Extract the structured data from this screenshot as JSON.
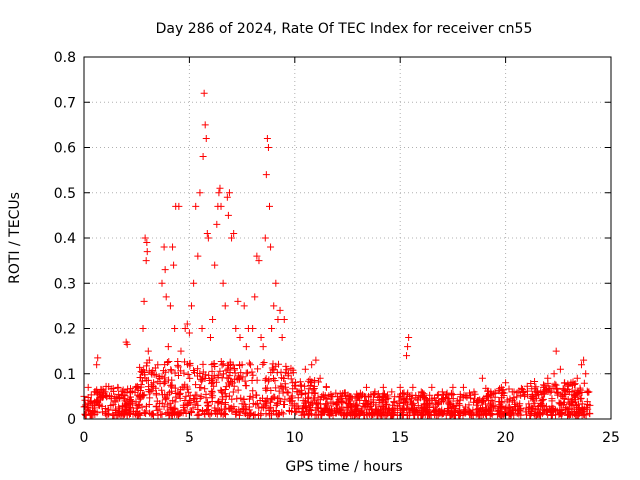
{
  "chart_data": {
    "type": "scatter",
    "title": "Day 286 of 2024, Rate Of TEC Index for receiver cn55",
    "xlabel": "GPS time / hours",
    "ylabel": "ROTI / TECUs",
    "xlim": [
      0,
      25
    ],
    "ylim": [
      0,
      0.8
    ],
    "xticks": [
      "0",
      "5",
      "10",
      "15",
      "20",
      "25"
    ],
    "yticks": [
      "0",
      "0.1",
      "0.2",
      "0.3",
      "0.4",
      "0.5",
      "0.6",
      "0.7",
      "0.8"
    ],
    "grid": true,
    "marker": "+",
    "color": "#ff0000",
    "series": [
      {
        "name": "ROTI",
        "points": [
          [
            0.0,
            0.05
          ],
          [
            0.2,
            0.07
          ],
          [
            0.3,
            0.04
          ],
          [
            0.5,
            0.06
          ],
          [
            0.6,
            0.12
          ],
          [
            0.65,
            0.135
          ],
          [
            0.8,
            0.05
          ],
          [
            1.0,
            0.06
          ],
          [
            1.3,
            0.05
          ],
          [
            1.6,
            0.07
          ],
          [
            2.0,
            0.17
          ],
          [
            2.05,
            0.165
          ],
          [
            2.2,
            0.06
          ],
          [
            2.5,
            0.07
          ],
          [
            2.8,
            0.2
          ],
          [
            2.85,
            0.26
          ],
          [
            2.9,
            0.4
          ],
          [
            2.95,
            0.35
          ],
          [
            2.98,
            0.39
          ],
          [
            3.0,
            0.37
          ],
          [
            3.05,
            0.15
          ],
          [
            3.1,
            0.13
          ],
          [
            3.3,
            0.08
          ],
          [
            3.5,
            0.12
          ],
          [
            3.7,
            0.3
          ],
          [
            3.8,
            0.38
          ],
          [
            3.85,
            0.33
          ],
          [
            3.9,
            0.27
          ],
          [
            4.0,
            0.16
          ],
          [
            4.1,
            0.25
          ],
          [
            4.2,
            0.38
          ],
          [
            4.25,
            0.34
          ],
          [
            4.3,
            0.2
          ],
          [
            4.35,
            0.47
          ],
          [
            4.5,
            0.47
          ],
          [
            4.6,
            0.15
          ],
          [
            4.8,
            0.2
          ],
          [
            4.9,
            0.21
          ],
          [
            5.0,
            0.19
          ],
          [
            5.1,
            0.25
          ],
          [
            5.2,
            0.3
          ],
          [
            5.3,
            0.47
          ],
          [
            5.4,
            0.36
          ],
          [
            5.5,
            0.5
          ],
          [
            5.6,
            0.2
          ],
          [
            5.65,
            0.58
          ],
          [
            5.7,
            0.72
          ],
          [
            5.75,
            0.65
          ],
          [
            5.8,
            0.62
          ],
          [
            5.85,
            0.41
          ],
          [
            5.9,
            0.4
          ],
          [
            6.0,
            0.18
          ],
          [
            6.1,
            0.22
          ],
          [
            6.2,
            0.34
          ],
          [
            6.3,
            0.43
          ],
          [
            6.35,
            0.47
          ],
          [
            6.4,
            0.5
          ],
          [
            6.45,
            0.51
          ],
          [
            6.5,
            0.47
          ],
          [
            6.6,
            0.3
          ],
          [
            6.7,
            0.25
          ],
          [
            6.8,
            0.49
          ],
          [
            6.85,
            0.45
          ],
          [
            6.9,
            0.5
          ],
          [
            7.0,
            0.4
          ],
          [
            7.1,
            0.41
          ],
          [
            7.2,
            0.2
          ],
          [
            7.3,
            0.26
          ],
          [
            7.4,
            0.18
          ],
          [
            7.5,
            0.12
          ],
          [
            7.6,
            0.25
          ],
          [
            7.7,
            0.16
          ],
          [
            7.8,
            0.2
          ],
          [
            7.9,
            0.12
          ],
          [
            8.0,
            0.2
          ],
          [
            8.1,
            0.27
          ],
          [
            8.2,
            0.36
          ],
          [
            8.3,
            0.35
          ],
          [
            8.4,
            0.18
          ],
          [
            8.5,
            0.16
          ],
          [
            8.6,
            0.4
          ],
          [
            8.65,
            0.54
          ],
          [
            8.7,
            0.62
          ],
          [
            8.75,
            0.6
          ],
          [
            8.8,
            0.47
          ],
          [
            8.85,
            0.38
          ],
          [
            8.9,
            0.2
          ],
          [
            9.0,
            0.25
          ],
          [
            9.1,
            0.3
          ],
          [
            9.2,
            0.22
          ],
          [
            9.3,
            0.24
          ],
          [
            9.4,
            0.18
          ],
          [
            9.5,
            0.22
          ],
          [
            9.7,
            0.1
          ],
          [
            9.9,
            0.08
          ],
          [
            10.2,
            0.06
          ],
          [
            10.5,
            0.11
          ],
          [
            10.8,
            0.12
          ],
          [
            11.0,
            0.13
          ],
          [
            11.2,
            0.09
          ],
          [
            11.5,
            0.07
          ],
          [
            11.8,
            0.05
          ],
          [
            12.2,
            0.04
          ],
          [
            12.6,
            0.05
          ],
          [
            13.0,
            0.05
          ],
          [
            13.4,
            0.07
          ],
          [
            13.8,
            0.06
          ],
          [
            14.2,
            0.07
          ],
          [
            14.6,
            0.06
          ],
          [
            15.0,
            0.07
          ],
          [
            15.3,
            0.14
          ],
          [
            15.35,
            0.16
          ],
          [
            15.4,
            0.18
          ],
          [
            15.6,
            0.07
          ],
          [
            16.0,
            0.06
          ],
          [
            16.5,
            0.07
          ],
          [
            17.0,
            0.06
          ],
          [
            17.5,
            0.07
          ],
          [
            18.0,
            0.07
          ],
          [
            18.5,
            0.06
          ],
          [
            18.9,
            0.09
          ],
          [
            19.3,
            0.06
          ],
          [
            19.8,
            0.07
          ],
          [
            20.0,
            0.08
          ],
          [
            20.4,
            0.06
          ],
          [
            20.9,
            0.05
          ],
          [
            21.4,
            0.06
          ],
          [
            21.8,
            0.07
          ],
          [
            22.0,
            0.09
          ],
          [
            22.3,
            0.1
          ],
          [
            22.4,
            0.15
          ],
          [
            22.6,
            0.11
          ],
          [
            22.8,
            0.08
          ],
          [
            23.1,
            0.08
          ],
          [
            23.4,
            0.09
          ],
          [
            23.6,
            0.12
          ],
          [
            23.7,
            0.13
          ],
          [
            23.8,
            0.1
          ],
          [
            23.95,
            0.06
          ],
          [
            24.0,
            0.03
          ]
        ]
      }
    ]
  }
}
